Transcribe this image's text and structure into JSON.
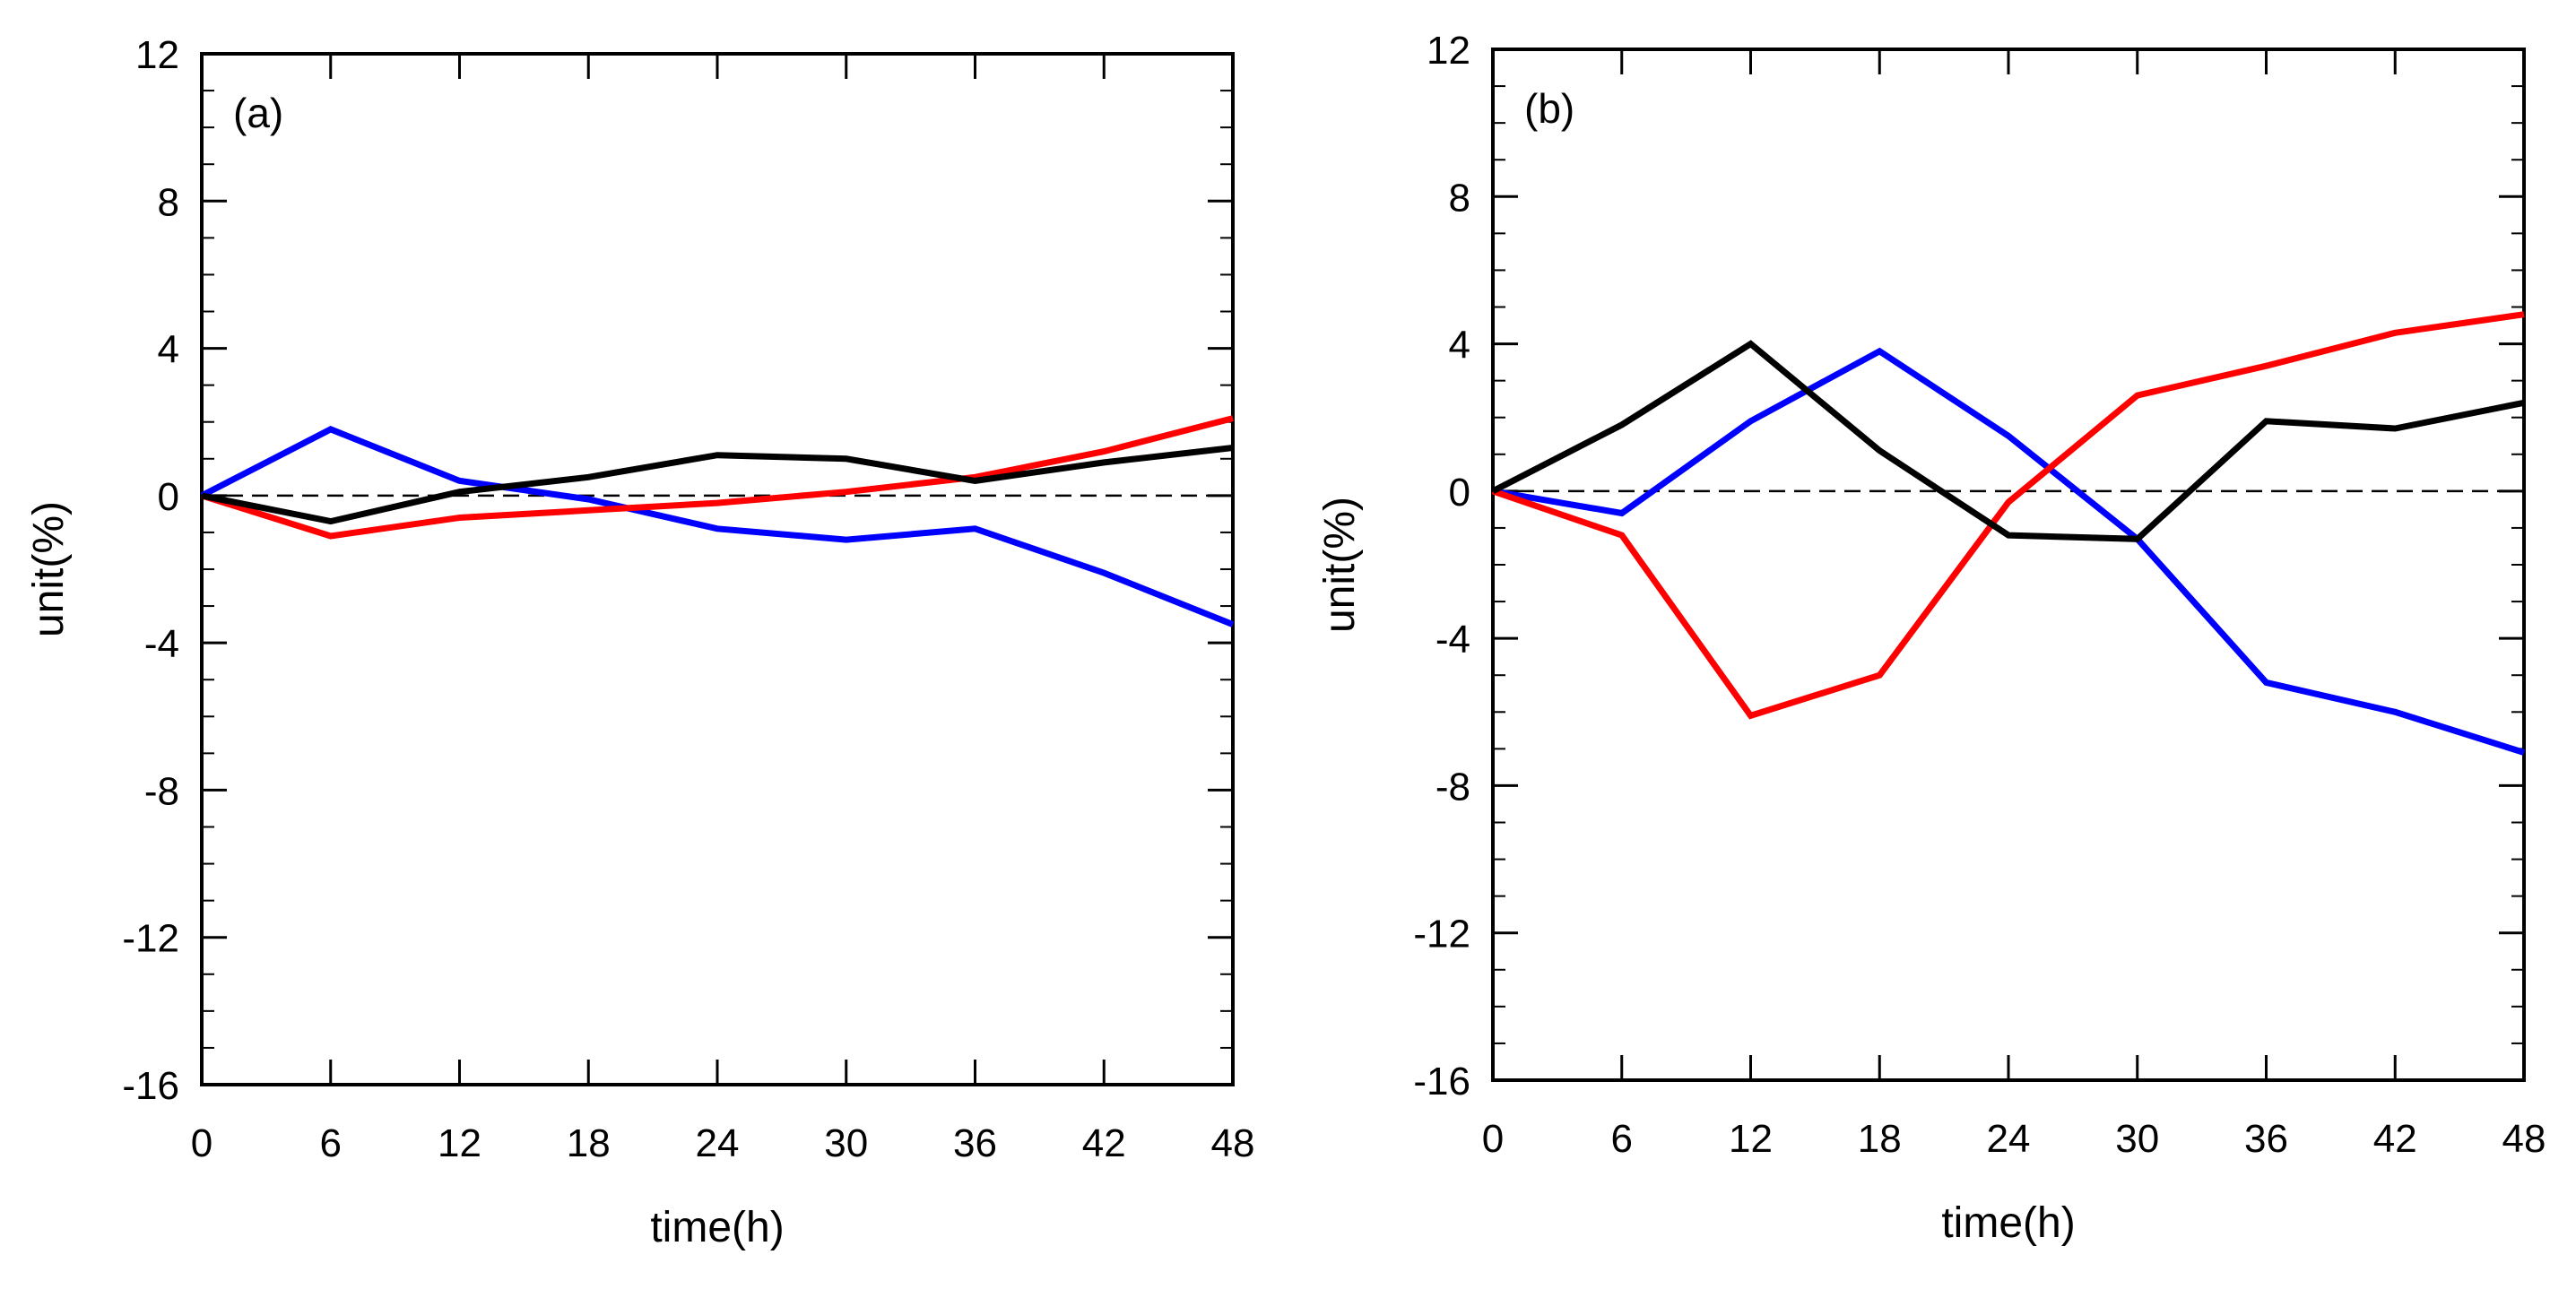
{
  "colors": {
    "red": "#ff0000",
    "blue": "#0000ff",
    "black": "#000000"
  },
  "chart_data": [
    {
      "type": "line",
      "panel_label": "(a)",
      "xlabel": "time(h)",
      "ylabel": "unit(%)",
      "x": [
        0,
        6,
        12,
        18,
        24,
        30,
        36,
        42,
        48
      ],
      "xticks": [
        "0",
        "6",
        "12",
        "18",
        "24",
        "30",
        "36",
        "42",
        "48"
      ],
      "yticks": [
        "12",
        "8",
        "4",
        "0",
        "-4",
        "-8",
        "-12",
        "-16"
      ],
      "xlim": [
        0,
        48
      ],
      "ylim": [
        -16,
        12
      ],
      "zero_line": "dashed",
      "series": [
        {
          "name": "blue",
          "color": "#0000ff",
          "values": [
            0,
            1.8,
            0.4,
            -0.1,
            -0.9,
            -1.2,
            -0.9,
            -2.1,
            -3.5
          ]
        },
        {
          "name": "red",
          "color": "#ff0000",
          "values": [
            0,
            -1.1,
            -0.6,
            -0.4,
            -0.2,
            0.1,
            0.5,
            1.2,
            2.1
          ]
        },
        {
          "name": "black",
          "color": "#000000",
          "values": [
            0,
            -0.7,
            0.1,
            0.5,
            1.1,
            1.0,
            0.4,
            0.9,
            1.3
          ]
        }
      ]
    },
    {
      "type": "line",
      "panel_label": "(b)",
      "xlabel": "time(h)",
      "ylabel": "unit(%)",
      "x": [
        0,
        6,
        12,
        18,
        24,
        30,
        36,
        42,
        48
      ],
      "xticks": [
        "0",
        "6",
        "12",
        "18",
        "24",
        "30",
        "36",
        "42",
        "48"
      ],
      "yticks": [
        "12",
        "8",
        "4",
        "0",
        "-4",
        "-8",
        "-12",
        "-16"
      ],
      "xlim": [
        0,
        48
      ],
      "ylim": [
        -16,
        12
      ],
      "zero_line": "dashed",
      "series": [
        {
          "name": "blue",
          "color": "#0000ff",
          "values": [
            0,
            -0.6,
            1.9,
            3.8,
            1.5,
            -1.3,
            -5.2,
            -6.0,
            -7.1
          ]
        },
        {
          "name": "red",
          "color": "#ff0000",
          "values": [
            0,
            -1.2,
            -6.1,
            -5.0,
            -0.3,
            2.6,
            3.4,
            4.3,
            4.8
          ]
        },
        {
          "name": "black",
          "color": "#000000",
          "values": [
            0,
            1.8,
            4.0,
            1.1,
            -1.2,
            -1.3,
            1.9,
            1.7,
            2.4
          ]
        }
      ]
    }
  ]
}
